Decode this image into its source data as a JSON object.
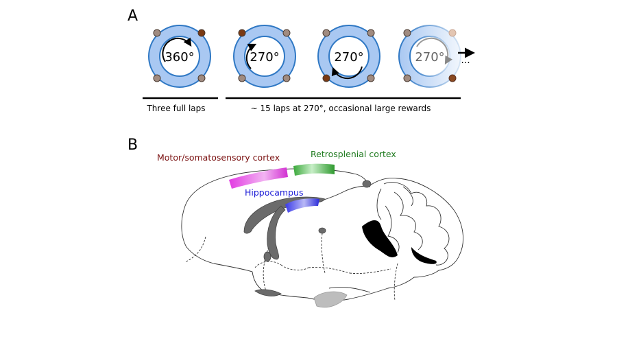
{
  "panel_a": {
    "letter": "A",
    "tracks": [
      {
        "angle_label": "360°"
      },
      {
        "angle_label": "270°"
      },
      {
        "angle_label": "270°"
      },
      {
        "angle_label": "270°"
      }
    ],
    "continuation": "...",
    "bracket_1_label": "Three full laps",
    "bracket_2_label": "~ 15 laps at 270°, occasional large rewards"
  },
  "panel_b": {
    "letter": "B",
    "regions": [
      {
        "label": "Motor/somatosensory cortex",
        "color": "#7a1010"
      },
      {
        "label": "Retrosplenial cortex",
        "color": "#1e7a1e"
      },
      {
        "label": "Hippocampus",
        "color": "#1a1ad6"
      }
    ]
  },
  "colors": {
    "track_fill": "#a9c8f2",
    "track_stroke": "#2f78c4",
    "reward_large": "#7a3a14",
    "reward_small": "#a08b80",
    "motor_highlight": "#e23be2",
    "retrosplenial_highlight": "#3aa83a",
    "hippocampus_highlight": "#3a3ae8",
    "brain_structures": "#6b6b6b"
  }
}
